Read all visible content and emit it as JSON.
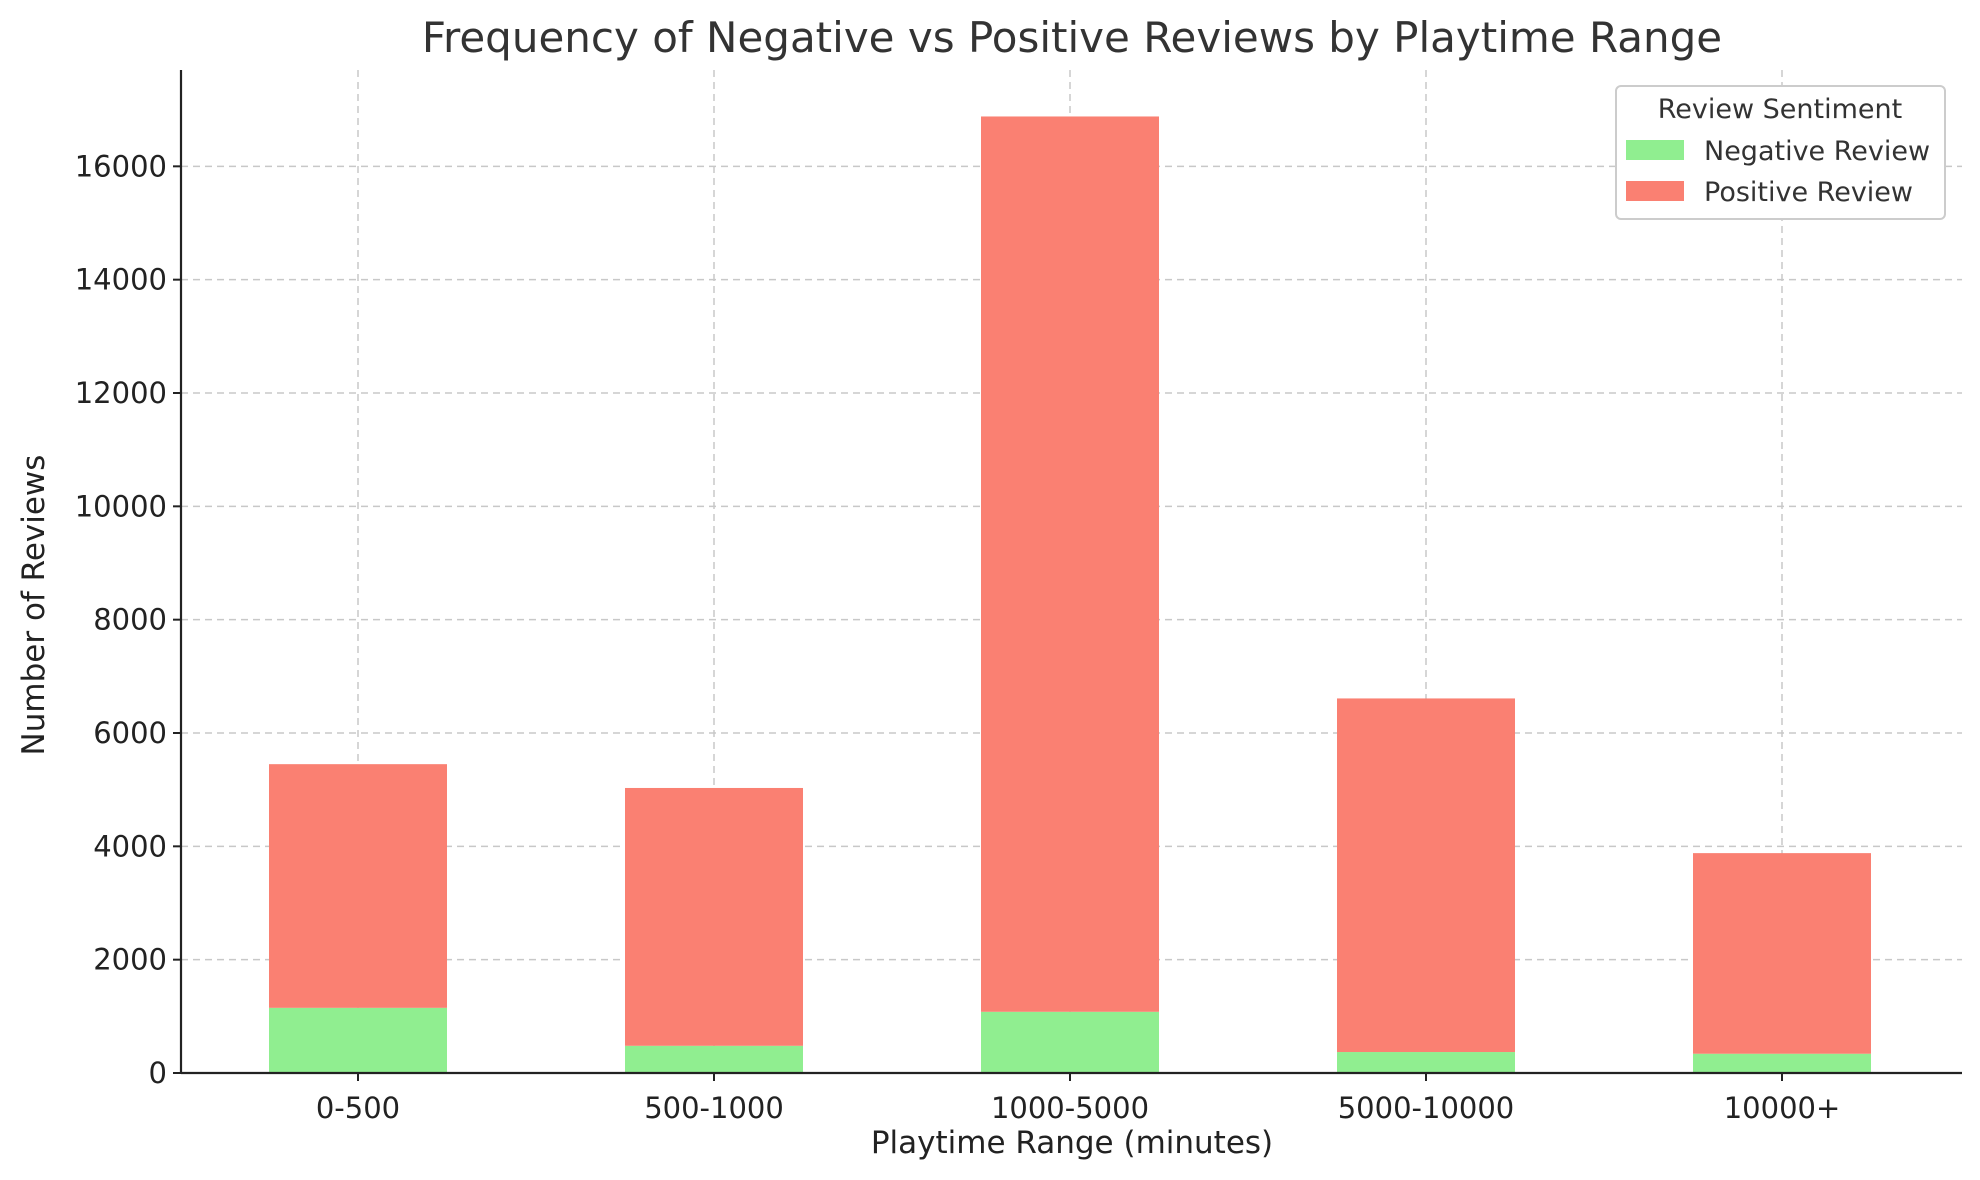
{
  "chart_data": {
    "type": "bar",
    "stacked": true,
    "title": "Frequency of Negative vs Positive Reviews by Playtime Range",
    "xlabel": "Playtime Range (minutes)",
    "ylabel": "Number of Reviews",
    "categories": [
      "0-500",
      "500-1000",
      "1000-5000",
      "5000-10000",
      "10000+"
    ],
    "series": [
      {
        "name": "Negative Review",
        "color": "#90EE90",
        "values": [
          1150,
          480,
          1080,
          370,
          340
        ]
      },
      {
        "name": "Positive Review",
        "color": "#FA8072",
        "values": [
          4300,
          4550,
          15800,
          6240,
          3540
        ]
      }
    ],
    "ylim": [
      0,
      17700
    ],
    "yticks": [
      0,
      2000,
      4000,
      6000,
      8000,
      10000,
      12000,
      14000,
      16000
    ],
    "legend": {
      "title": "Review Sentiment",
      "position": "top-right"
    },
    "grid": true
  }
}
